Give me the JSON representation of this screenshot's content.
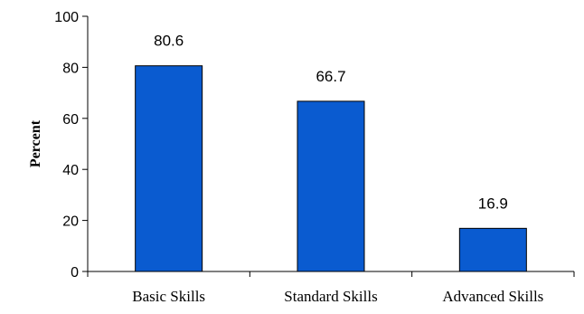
{
  "chart_data": {
    "type": "bar",
    "categories": [
      "Basic Skills",
      "Standard Skills",
      "Advanced Skills"
    ],
    "values": [
      80.6,
      66.7,
      16.9
    ],
    "data_labels": [
      "80.6",
      "66.7",
      "16.9"
    ],
    "title": "",
    "xlabel": "",
    "ylabel": "Percent",
    "ylim": [
      0,
      100
    ],
    "yticks": [
      0,
      20,
      40,
      60,
      80,
      100
    ],
    "grid": false,
    "legend": "none",
    "bar_color": "#0a5bd0",
    "bar_outline": "#000000"
  }
}
